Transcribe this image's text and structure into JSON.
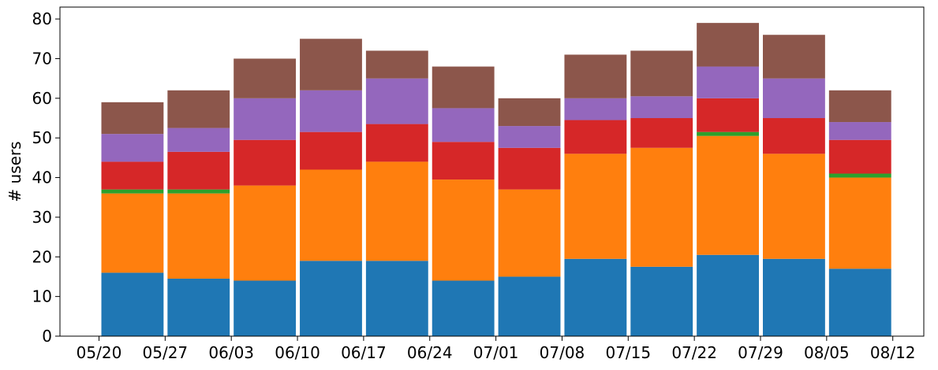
{
  "chart_data": {
    "type": "bar",
    "stacked": true,
    "title": "",
    "xlabel": "",
    "ylabel": "# users",
    "ylim": [
      0,
      83
    ],
    "yticks": [
      0,
      10,
      20,
      30,
      40,
      50,
      60,
      70,
      80
    ],
    "xtick_labels": [
      "05/20",
      "05/27",
      "06/03",
      "06/10",
      "06/17",
      "06/24",
      "07/01",
      "07/08",
      "07/15",
      "07/22",
      "07/29",
      "08/05",
      "08/12"
    ],
    "categories": [
      "05/20",
      "05/27",
      "06/03",
      "06/10",
      "06/17",
      "06/24",
      "07/01",
      "07/08",
      "07/15",
      "07/22",
      "07/29",
      "08/05"
    ],
    "grid": false,
    "legend": "none",
    "series": [
      {
        "color": "#1f77b4",
        "values": [
          16,
          14.5,
          14,
          19,
          19,
          14,
          15,
          19.5,
          17.5,
          20.5,
          19.5,
          17
        ]
      },
      {
        "color": "#ff7f0e",
        "values": [
          20,
          21.5,
          24,
          23,
          25,
          25.5,
          22,
          26.5,
          30,
          30,
          26.5,
          23
        ]
      },
      {
        "color": "#2ca02c",
        "values": [
          1,
          1,
          0,
          0,
          0,
          0,
          0,
          0,
          0,
          1,
          0,
          1
        ]
      },
      {
        "color": "#d62728",
        "values": [
          7,
          9.5,
          11.5,
          9.5,
          9.5,
          9.5,
          10.5,
          8.5,
          7.5,
          8.5,
          9,
          8.5
        ]
      },
      {
        "color": "#9467bd",
        "values": [
          7,
          6,
          10.5,
          10.5,
          11.5,
          8.5,
          5.5,
          5.5,
          5.5,
          8,
          10,
          4.5
        ]
      },
      {
        "color": "#8c564b",
        "values": [
          8,
          9.5,
          10,
          13,
          7,
          10.5,
          7,
          11,
          11.5,
          11,
          11,
          8
        ]
      }
    ]
  }
}
